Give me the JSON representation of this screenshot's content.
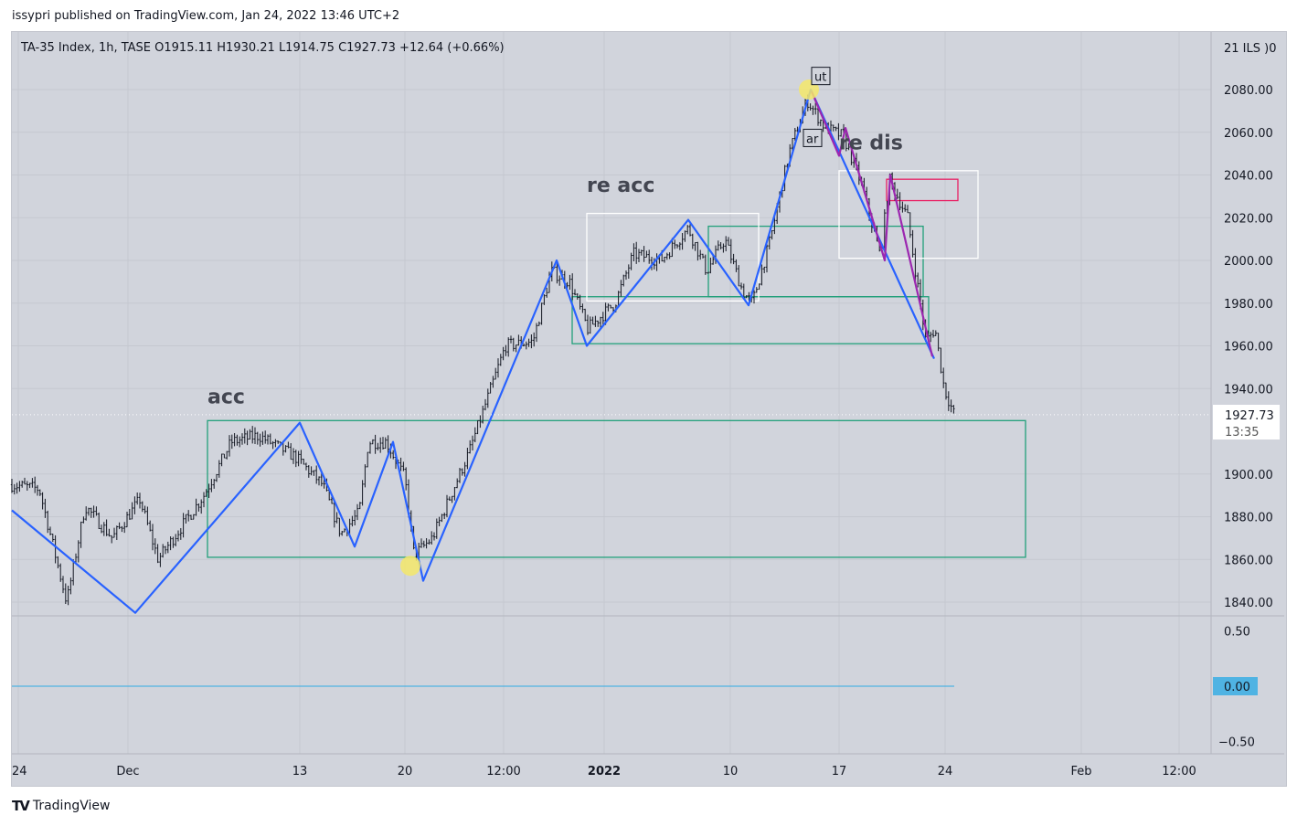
{
  "header": {
    "published": "issypri published on TradingView.com, Jan 24, 2022 13:46 UTC+2",
    "legend": "TA-35 Index, 1h, TASE  O1915.11  H1930.21  L1914.75  C1927.73  +12.64 (+0.66%)"
  },
  "footer": {
    "brand": "TradingView"
  },
  "chart_data": {
    "type": "line",
    "title": "TA-35 Index, 1h, TASE",
    "symbol": "TA-35 Index",
    "interval": "1h",
    "exchange": "TASE",
    "ohlc": {
      "open": 1915.11,
      "high": 1930.21,
      "low": 1914.75,
      "close": 1927.73,
      "change": "+12.64 (+0.66%)"
    },
    "currency_label": "21 ILS )0",
    "last_price_label": "1927.73",
    "last_price_timer": "13:35",
    "last_price": 1927.73,
    "ylim": [
      1830,
      2100
    ],
    "y_ticks": [
      "2080.00",
      "2060.00",
      "2040.00",
      "2020.00",
      "2000.00",
      "1980.00",
      "1960.00",
      "1940.00",
      "1900.00",
      "1880.00",
      "1860.00",
      "1840.00"
    ],
    "y_tick_values": [
      2080,
      2060,
      2040,
      2020,
      2000,
      1980,
      1960,
      1940,
      1900,
      1880,
      1860,
      1840
    ],
    "x_ticks": [
      {
        "label": "24",
        "x": 0.7,
        "bold": false
      },
      {
        "label": "Dec",
        "x": 12.7,
        "bold": false
      },
      {
        "label": "13",
        "x": 31.5,
        "bold": false
      },
      {
        "label": "20",
        "x": 43,
        "bold": false
      },
      {
        "label": "12:00",
        "x": 53.8,
        "bold": false
      },
      {
        "label": "2022",
        "x": 64.8,
        "bold": true
      },
      {
        "label": "10",
        "x": 78.6,
        "bold": false
      },
      {
        "label": "17",
        "x": 90.5,
        "bold": false
      },
      {
        "label": "24",
        "x": 102.1,
        "bold": false
      },
      {
        "label": "Feb",
        "x": 117,
        "bold": false
      },
      {
        "label": "12:00",
        "x": 127.7,
        "bold": false
      }
    ],
    "xlim": [
      0,
      131
    ],
    "price_path": [
      [
        0,
        1895
      ],
      [
        3,
        1893
      ],
      [
        6,
        1840
      ],
      [
        8,
        1885
      ],
      [
        11,
        1870
      ],
      [
        14,
        1888
      ],
      [
        16,
        1860
      ],
      [
        19,
        1878
      ],
      [
        21,
        1890
      ],
      [
        24,
        1915
      ],
      [
        27,
        1918
      ],
      [
        31,
        1908
      ],
      [
        34,
        1895
      ],
      [
        36,
        1872
      ],
      [
        38,
        1882
      ],
      [
        39,
        1915
      ],
      [
        41,
        1915
      ],
      [
        43,
        1898
      ],
      [
        44,
        1862
      ],
      [
        46,
        1870
      ],
      [
        48,
        1890
      ],
      [
        50,
        1910
      ],
      [
        52,
        1935
      ],
      [
        54,
        1960
      ],
      [
        57,
        1962
      ],
      [
        59,
        1995
      ],
      [
        61,
        1990
      ],
      [
        63,
        1968
      ],
      [
        66,
        1980
      ],
      [
        68,
        2003
      ],
      [
        71,
        2000
      ],
      [
        74,
        2015
      ],
      [
        76,
        1995
      ],
      [
        78,
        2010
      ],
      [
        80,
        1985
      ],
      [
        81,
        1980
      ],
      [
        83,
        2010
      ],
      [
        85,
        2050
      ],
      [
        87,
        2075
      ],
      [
        89,
        2062
      ],
      [
        91,
        2058
      ],
      [
        93,
        2035
      ],
      [
        95,
        2002
      ],
      [
        96,
        2038
      ],
      [
        98,
        2020
      ],
      [
        100,
        1962
      ],
      [
        101,
        1968
      ],
      [
        102,
        1940
      ],
      [
        103.1,
        1927.73
      ]
    ],
    "series": [
      {
        "name": "wyckoff-zigzag",
        "color": "#2962ff",
        "points": [
          [
            0,
            1883
          ],
          [
            13.5,
            1835
          ],
          [
            31.5,
            1924
          ],
          [
            37.5,
            1866
          ],
          [
            41.7,
            1915
          ],
          [
            45,
            1850
          ],
          [
            59.6,
            2000
          ],
          [
            62.9,
            1960
          ],
          [
            74,
            2019
          ],
          [
            80.6,
            1979
          ],
          [
            87.4,
            2080
          ],
          [
            100.9,
            1954
          ]
        ]
      },
      {
        "name": "distribution-zigzag",
        "color": "#9c27b0",
        "points": [
          [
            87.5,
            2079
          ],
          [
            90.5,
            2049
          ],
          [
            91.2,
            2062
          ],
          [
            95.5,
            2000
          ],
          [
            96.1,
            2040
          ],
          [
            100.7,
            1955
          ]
        ]
      }
    ],
    "boxes": [
      {
        "name": "acc-range",
        "color": "#22a07a",
        "x": [
          21.4,
          110.9
        ],
        "y": [
          1861,
          1925
        ]
      },
      {
        "name": "re-acc-range-lower",
        "color": "#22a07a",
        "x": [
          61.3,
          100.3
        ],
        "y": [
          1961,
          1983
        ]
      },
      {
        "name": "re-acc-range-upper",
        "color": "#22a07a",
        "x": [
          76.2,
          99.7
        ],
        "y": [
          1983,
          2016
        ]
      },
      {
        "name": "re-acc-highlight",
        "color": "#ffffff",
        "x": [
          62.9,
          81.7
        ],
        "y": [
          1981,
          2022
        ]
      },
      {
        "name": "re-dis-highlight",
        "color": "#ffffff",
        "x": [
          90.5,
          105.7
        ],
        "y": [
          2001,
          2042
        ]
      },
      {
        "name": "resistance-zone",
        "color": "#e91e63",
        "x": [
          95.7,
          103.5
        ],
        "y": [
          2028,
          2038
        ]
      }
    ],
    "markers": [
      {
        "x": 87.2,
        "y": 2080
      },
      {
        "x": 43.6,
        "y": 1857
      }
    ],
    "annotations": [
      {
        "text": "acc",
        "x": 21.4,
        "y": 1933,
        "style": "big"
      },
      {
        "text": "re acc",
        "x": 62.9,
        "y": 2032,
        "style": "big"
      },
      {
        "text": "re dis",
        "x": 90.5,
        "y": 2052,
        "style": "big"
      },
      {
        "text": "ut",
        "x": 87.5,
        "y": 2084,
        "style": "box"
      },
      {
        "text": "ar",
        "x": 86.6,
        "y": 2055,
        "style": "box"
      }
    ],
    "indicator": {
      "ylim": [
        -0.62,
        0.62
      ],
      "y_ticks": [
        "0.50",
        "-0.50"
      ],
      "y_tick_values": [
        0.5,
        -0.5
      ],
      "value": 0.0,
      "value_label": "0.00",
      "color": "#4fb3e3"
    }
  }
}
